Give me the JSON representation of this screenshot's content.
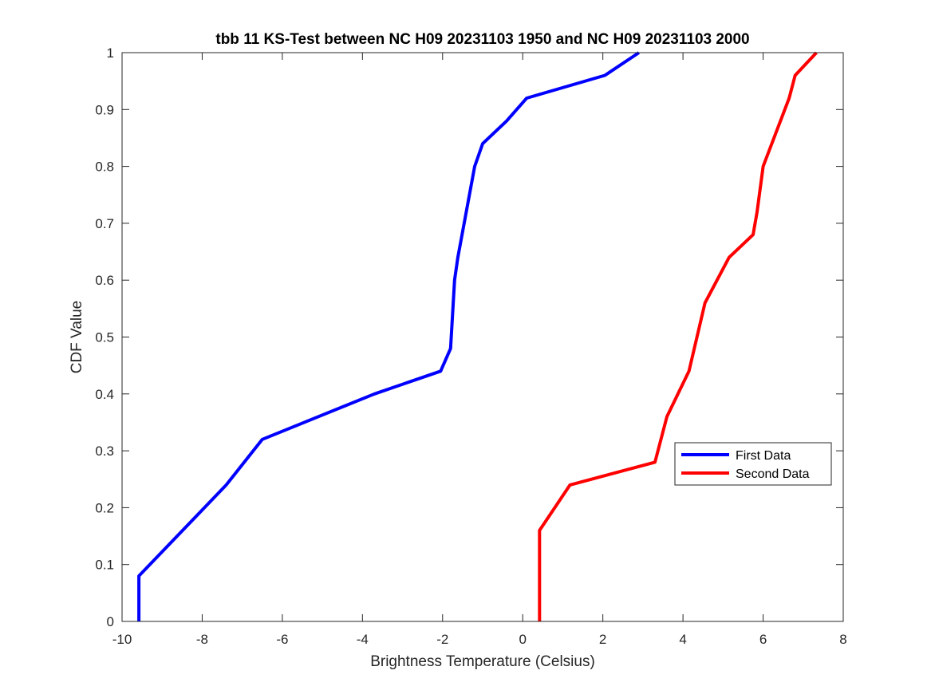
{
  "chart_data": {
    "type": "line",
    "title": "tbb 11 KS-Test between NC H09 20231103 1950 and NC H09 20231103 2000",
    "xlabel": "Brightness Temperature (Celsius)",
    "ylabel": "CDF Value",
    "xlim": [
      -10,
      8
    ],
    "ylim": [
      0,
      1
    ],
    "xticks": [
      -10,
      -8,
      -6,
      -4,
      -2,
      0,
      2,
      4,
      6,
      8
    ],
    "xtick_labels": [
      "-10",
      "-8",
      "-6",
      "-4",
      "-2",
      "0",
      "2",
      "4",
      "6",
      "8"
    ],
    "yticks": [
      0,
      0.1,
      0.2,
      0.3,
      0.4,
      0.5,
      0.6,
      0.7,
      0.8,
      0.9,
      1
    ],
    "ytick_labels": [
      "0",
      "0.1",
      "0.2",
      "0.3",
      "0.4",
      "0.5",
      "0.6",
      "0.7",
      "0.8",
      "0.9",
      "1"
    ],
    "grid": false,
    "legend_position": "middle-right",
    "series": [
      {
        "name": "First Data",
        "color": "#0000ff",
        "x": [
          -9.58,
          -9.58,
          -7.4,
          -6.5,
          -3.7,
          -2.05,
          -1.8,
          -1.7,
          -1.62,
          -1.2,
          -1.0,
          -0.4,
          0.1,
          2.05,
          2.9
        ],
        "y": [
          0,
          0.08,
          0.24,
          0.32,
          0.4,
          0.44,
          0.48,
          0.6,
          0.64,
          0.8,
          0.84,
          0.88,
          0.92,
          0.96,
          1.0
        ]
      },
      {
        "name": "Second Data",
        "color": "#ff0000",
        "x": [
          0.42,
          0.42,
          1.18,
          3.3,
          3.6,
          4.15,
          4.55,
          5.15,
          5.75,
          5.85,
          6.0,
          6.65,
          6.8,
          7.33
        ],
        "y": [
          0,
          0.16,
          0.24,
          0.28,
          0.36,
          0.44,
          0.56,
          0.64,
          0.68,
          0.72,
          0.8,
          0.92,
          0.96,
          1.0
        ]
      }
    ]
  }
}
